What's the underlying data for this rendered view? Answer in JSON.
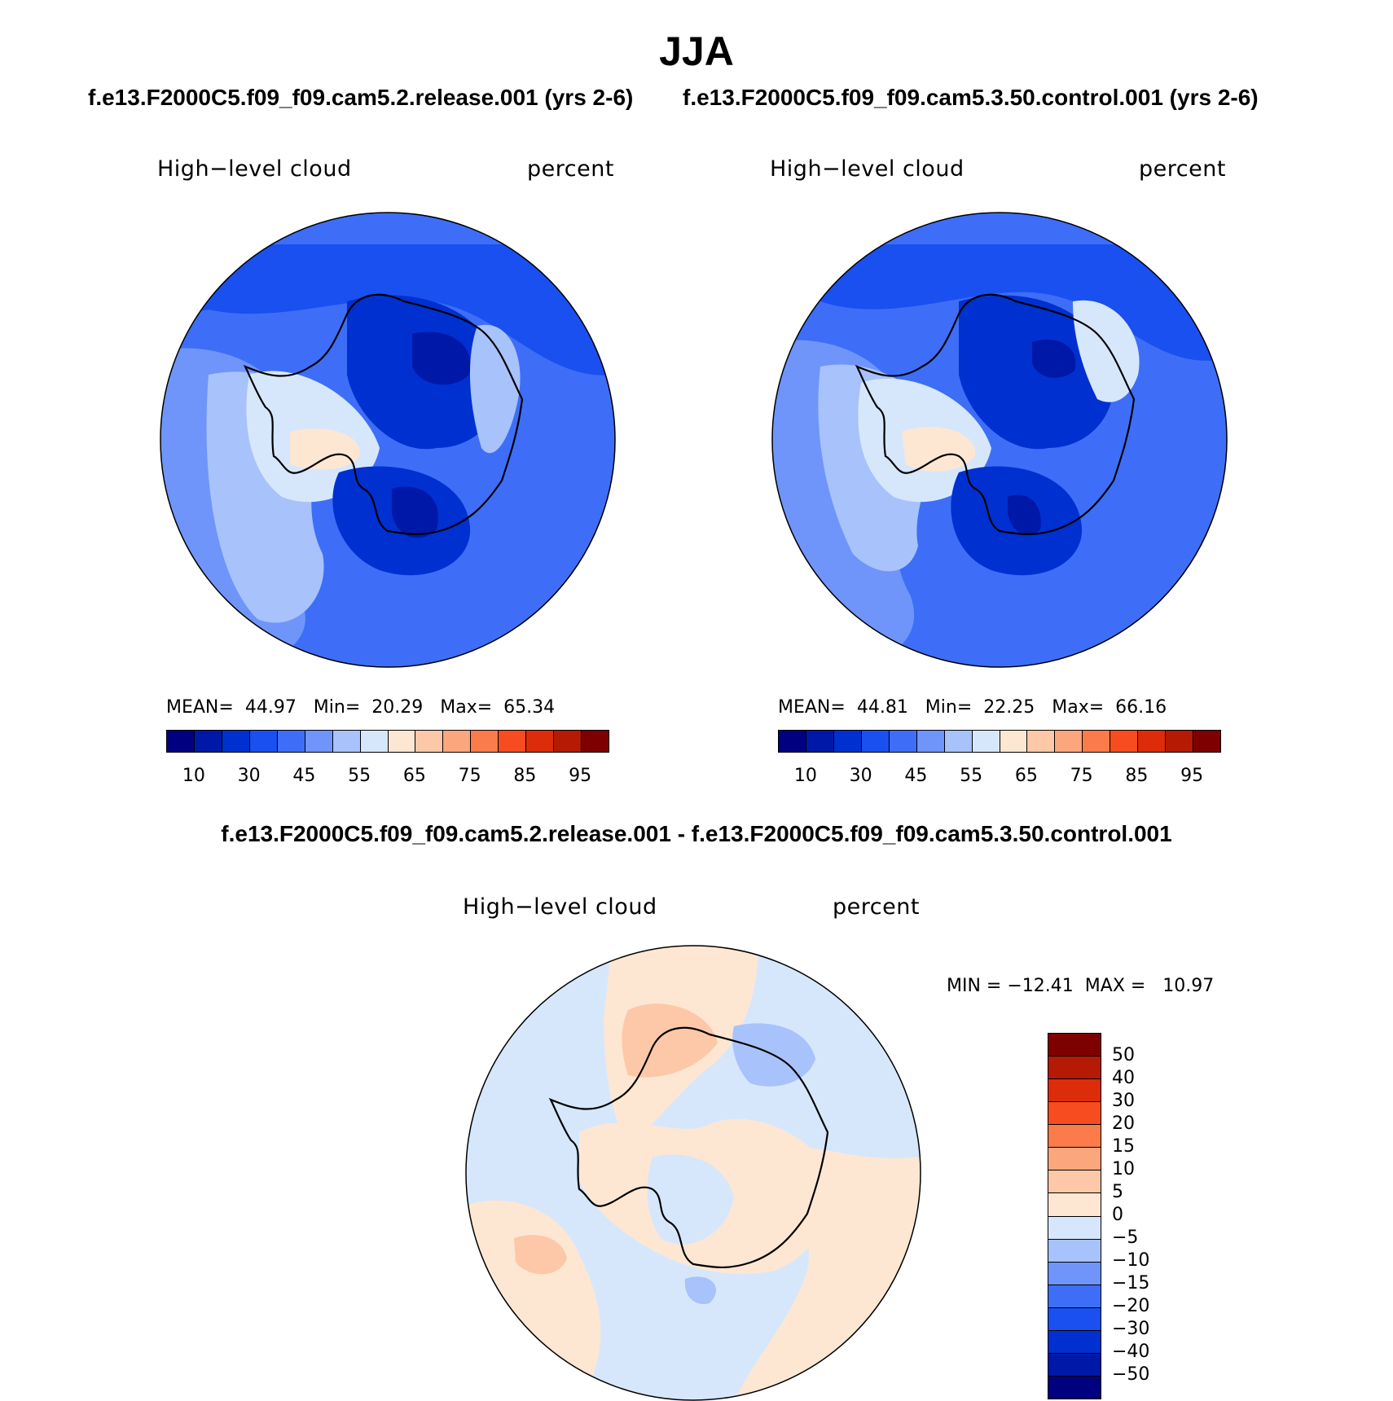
{
  "title": "JJA",
  "case1_title": "f.e13.F2000C5.f09_f09.cam5.2.release.001 (yrs 2-6)",
  "case2_title": "f.e13.F2000C5.f09_f09.cam5.3.50.control.001 (yrs 2-6)",
  "diff_title": "f.e13.F2000C5.f09_f09.cam5.2.release.001 - f.e13.F2000C5.f09_f09.cam5.3.50.control.001",
  "panels": [
    {
      "variable": "High−level cloud",
      "units": "percent",
      "stats": {
        "mean_label": "MEAN=",
        "mean": "44.97",
        "min_label": "Min=",
        "min": "20.29",
        "max_label": "Max=",
        "max": "65.34"
      }
    },
    {
      "variable": "High−level cloud",
      "units": "percent",
      "stats": {
        "mean_label": "MEAN=",
        "mean": "44.81",
        "min_label": "Min=",
        "min": "22.25",
        "max_label": "Max=",
        "max": "66.16"
      }
    },
    {
      "variable": "High−level cloud",
      "units": "percent",
      "stats": {
        "min_label": "MIN =",
        "min": "−12.41",
        "max_label": "MAX =",
        "max": "10.97"
      }
    }
  ],
  "colorbar_main": {
    "colors": [
      "#000080",
      "#0018a8",
      "#0030d0",
      "#1a4ff0",
      "#3e6ef7",
      "#6f95fa",
      "#a8c2fb",
      "#d6e7fc",
      "#fde7d3",
      "#fdc8a8",
      "#fca67e",
      "#fc7b4b",
      "#f64c1f",
      "#dd2c09",
      "#b51a04",
      "#7e0000"
    ],
    "labels": [
      "10",
      "30",
      "45",
      "55",
      "65",
      "75",
      "85",
      "95"
    ]
  },
  "colorbar_diff": {
    "colors": [
      "#7e0000",
      "#b51a04",
      "#dd2c09",
      "#f64c1f",
      "#fc7b4b",
      "#fca67e",
      "#fdc8a8",
      "#fde7d3",
      "#d6e7fc",
      "#a8c2fb",
      "#6f95fa",
      "#3e6ef7",
      "#1a4ff0",
      "#0030d0",
      "#0018a8",
      "#000080"
    ],
    "labels": [
      "50",
      "40",
      "30",
      "20",
      "15",
      "10",
      "5",
      "0",
      "−5",
      "−10",
      "−15",
      "−20",
      "−30",
      "−40",
      "−50"
    ]
  },
  "map_colors": {
    "c10": "#000080",
    "c20": "#0018a8",
    "c30": "#0030d0",
    "c40": "#1a4ff0",
    "c45": "#3e6ef7",
    "c50": "#6f95fa",
    "c55": "#a8c2fb",
    "c60": "#d6e7fc",
    "c65": "#fde7d3",
    "c70": "#fdc8a8",
    "d0p": "#fde7d3",
    "d5p": "#fdc8a8",
    "d10p": "#fca67e",
    "d0n": "#d6e7fc",
    "d5n": "#a8c2fb"
  }
}
